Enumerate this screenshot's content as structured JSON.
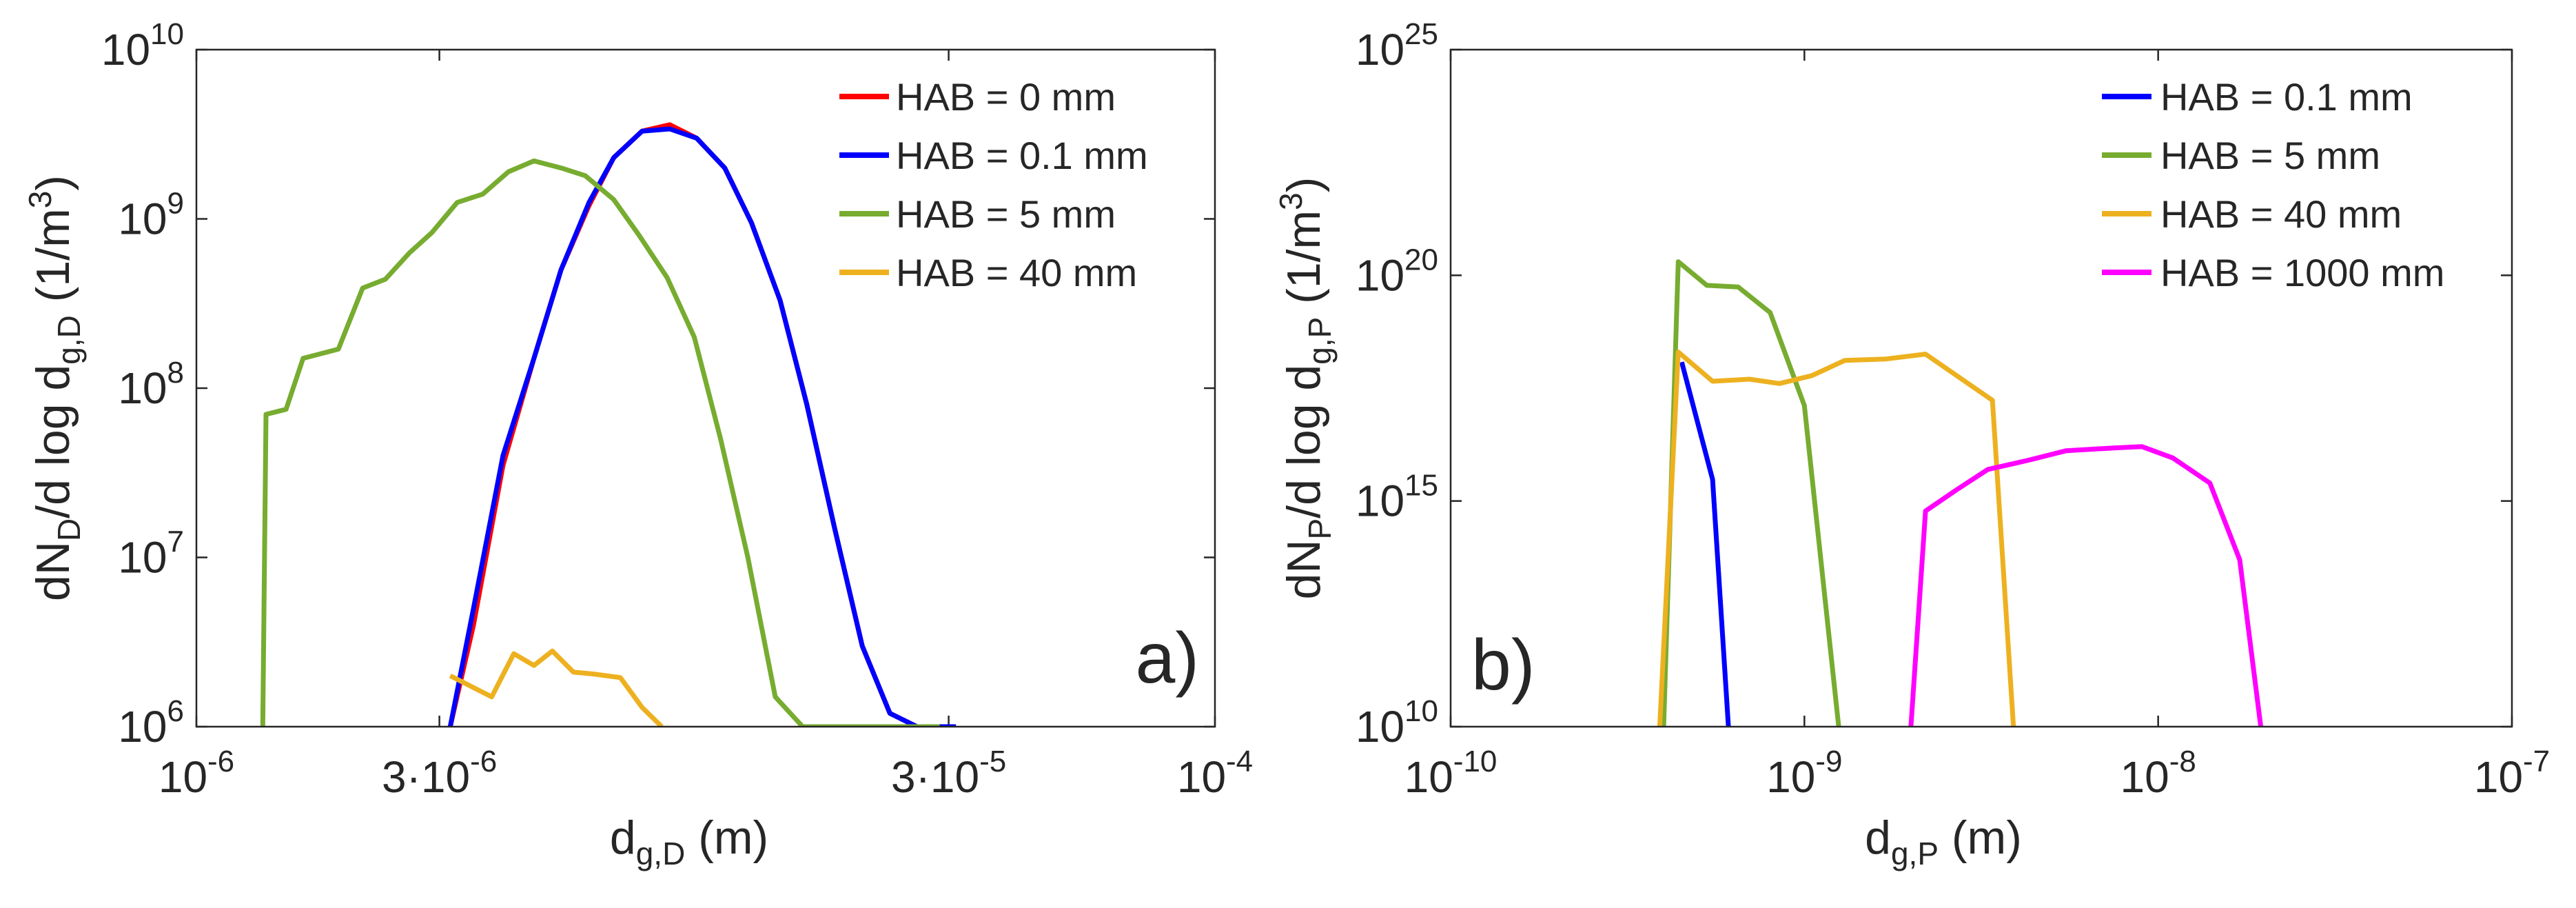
{
  "chart_data": [
    {
      "type": "line",
      "panel_label": "a)",
      "xscale": "log",
      "yscale": "log",
      "xlabel": {
        "base": "d",
        "sub": "g,D",
        "unit": " (m)"
      },
      "ylabel": {
        "p1": "dN",
        "s1": "D",
        "p2": "/d log d",
        "s2": "g,D",
        "p3": " (1/m",
        "sup": "3",
        "p4": ")"
      },
      "xlim": [
        1e-06,
        0.0001
      ],
      "ylim": [
        1000000.0,
        10000000000.0
      ],
      "xticks": [
        {
          "value": 1e-06,
          "mant": "10",
          "exp": "-6"
        },
        {
          "value": 3e-06,
          "mant": "3·10",
          "exp": "-6"
        },
        {
          "value": 3e-05,
          "mant": "3·10",
          "exp": "-5"
        },
        {
          "value": 0.0001,
          "mant": "10",
          "exp": "-4"
        }
      ],
      "yticks": [
        {
          "value": 1000000.0,
          "mant": "10",
          "exp": "6"
        },
        {
          "value": 10000000.0,
          "mant": "10",
          "exp": "7"
        },
        {
          "value": 100000000.0,
          "mant": "10",
          "exp": "8"
        },
        {
          "value": 1000000000.0,
          "mant": "10",
          "exp": "9"
        },
        {
          "value": 10000000000.0,
          "mant": "10",
          "exp": "10"
        }
      ],
      "legend_position": "top-right",
      "series": [
        {
          "name": "HAB = 0 mm",
          "color": "#ff0000",
          "x": [
            3.15e-06,
            3.5e-06,
            4e-06,
            4.6e-06,
            5.2e-06,
            5.9e-06,
            6.6e-06,
            7.5e-06,
            8.5e-06,
            9.6e-06,
            1.09e-05,
            1.23e-05,
            1.4e-05,
            1.58e-05,
            1.79e-05,
            2.03e-05,
            2.3e-05,
            2.6e-05,
            2.95e-05,
            3.1e-05
          ],
          "y": [
            1000000.0,
            4000000.0,
            35000000.0,
            150000000.0,
            500000000.0,
            1200000000.0,
            2300000000.0,
            3300000000.0,
            3600000000.0,
            3000000000.0,
            2000000000.0,
            950000000.0,
            330000000.0,
            80000000.0,
            15000000.0,
            3000000.0,
            1200000.0,
            1000000.0,
            1000000.0,
            1000000.0
          ]
        },
        {
          "name": "HAB = 0.1 mm",
          "color": "#0000ff",
          "x": [
            3.15e-06,
            3.5e-06,
            4e-06,
            4.6e-06,
            5.2e-06,
            5.9e-06,
            6.6e-06,
            7.5e-06,
            8.5e-06,
            9.6e-06,
            1.09e-05,
            1.23e-05,
            1.4e-05,
            1.58e-05,
            1.79e-05,
            2.03e-05,
            2.3e-05,
            2.6e-05,
            2.95e-05,
            3.1e-05
          ],
          "y": [
            1000000.0,
            5000000.0,
            40000000.0,
            150000000.0,
            500000000.0,
            1250000000.0,
            2300000000.0,
            3300000000.0,
            3400000000.0,
            3000000000.0,
            2000000000.0,
            950000000.0,
            330000000.0,
            80000000.0,
            15000000.0,
            3000000.0,
            1200000.0,
            1000000.0,
            1000000.0,
            1000000.0
          ]
        },
        {
          "name": "HAB = 5 mm",
          "color": "#77ac30",
          "x": [
            1.35e-06,
            1.37e-06,
            1.5e-06,
            1.62e-06,
            1.9e-06,
            2.12e-06,
            2.35e-06,
            2.62e-06,
            2.9e-06,
            3.25e-06,
            3.65e-06,
            4.1e-06,
            4.6e-06,
            5.2e-06,
            5.8e-06,
            6.6e-06,
            7.4e-06,
            8.4e-06,
            9.5e-06,
            1.07e-05,
            1.21e-05,
            1.37e-05,
            1.55e-05,
            1.76e-05,
            2e-05,
            2.27e-05,
            2.58e-05,
            2.88e-05
          ],
          "y": [
            1000000.0,
            70000000.0,
            75000000.0,
            150000000.0,
            170000000.0,
            390000000.0,
            440000000.0,
            630000000.0,
            830000000.0,
            1250000000.0,
            1400000000.0,
            1900000000.0,
            2200000000.0,
            2000000000.0,
            1800000000.0,
            1300000000.0,
            800000000.0,
            450000000.0,
            200000000.0,
            50000000.0,
            10000000.0,
            1500000.0,
            1000000.0,
            1000000.0,
            1000000.0,
            1000000.0,
            1000000.0,
            1000000.0
          ]
        },
        {
          "name": "HAB = 40 mm",
          "color": "#edb120",
          "x": [
            3.15e-06,
            3.8e-06,
            4.2e-06,
            4.6e-06,
            5e-06,
            5.5e-06,
            6e-06,
            6.8e-06,
            7.5e-06,
            8.2e-06
          ],
          "y": [
            2000000.0,
            1500000.0,
            2700000.0,
            2300000.0,
            2800000.0,
            2100000.0,
            2050000.0,
            1950000.0,
            1300000.0,
            1000000.0
          ]
        }
      ]
    },
    {
      "type": "line",
      "panel_label": "b)",
      "xscale": "log",
      "yscale": "log",
      "xlabel": {
        "base": "d",
        "sub": "g,P",
        "unit": " (m)"
      },
      "ylabel": {
        "p1": "dN",
        "s1": "P",
        "p2": "/d log d",
        "s2": "g,P",
        "p3": " (1/m",
        "sup": "3",
        "p4": ")"
      },
      "xlim": [
        1e-10,
        1e-07
      ],
      "ylim": [
        10000000000.0,
        1e+25
      ],
      "xticks": [
        {
          "value": 1e-10,
          "mant": "10",
          "exp": "-10"
        },
        {
          "value": 1e-09,
          "mant": "10",
          "exp": "-9"
        },
        {
          "value": 1e-08,
          "mant": "10",
          "exp": "-8"
        },
        {
          "value": 1e-07,
          "mant": "10",
          "exp": "-7"
        }
      ],
      "yticks": [
        {
          "value": 10000000000.0,
          "mant": "10",
          "exp": "10"
        },
        {
          "value": 1000000000000000.0,
          "mant": "10",
          "exp": "15"
        },
        {
          "value": 1e+20,
          "mant": "10",
          "exp": "20"
        },
        {
          "value": 1e+25,
          "mant": "10",
          "exp": "25"
        }
      ],
      "legend_position": "top-right",
      "series": [
        {
          "name": "HAB = 0.1 mm",
          "color": "#0000ff",
          "x": [
            4.5e-10,
            5.5e-10,
            6.1e-10
          ],
          "y": [
            1.2e+18,
            3000000000000000.0,
            10000000000.0
          ]
        },
        {
          "name": "HAB = 5 mm",
          "color": "#77ac30",
          "x": [
            4e-10,
            4.4e-10,
            5.3e-10,
            6.5e-10,
            8e-10,
            1e-09,
            1.25e-09
          ],
          "y": [
            10000000000.0,
            2e+20,
            6e+19,
            5.5e+19,
            1.5e+19,
            1.3e+17,
            10000000000.0
          ]
        },
        {
          "name": "HAB = 40 mm",
          "color": "#edb120",
          "x": [
            3.9e-10,
            4.4e-10,
            5.5e-10,
            7e-10,
            8.5e-10,
            1.05e-09,
            1.3e-09,
            1.7e-09,
            2.2e-09,
            3.4e-09,
            3.9e-09
          ],
          "y": [
            10000000000.0,
            2e+18,
            4.5e+17,
            5e+17,
            4e+17,
            6e+17,
            1.3e+18,
            1.4e+18,
            1.8e+18,
            1.7e+17,
            10000000000.0
          ]
        },
        {
          "name": "HAB = 1000 mm",
          "color": "#ff00ff",
          "x": [
            2e-09,
            2.2e-09,
            2.7e-09,
            3.3e-09,
            4.3e-09,
            5.5e-09,
            7.5e-09,
            9e-09,
            1.1e-08,
            1.4e-08,
            1.7e-08,
            1.95e-08
          ],
          "y": [
            10000000000.0,
            600000000000000.0,
            1800000000000000.0,
            5000000000000000.0,
            8000000000000000.0,
            1.3e+16,
            1.5e+16,
            1.6e+16,
            9000000000000000.0,
            2500000000000000.0,
            50000000000000.0,
            10000000000.0
          ]
        }
      ]
    }
  ]
}
